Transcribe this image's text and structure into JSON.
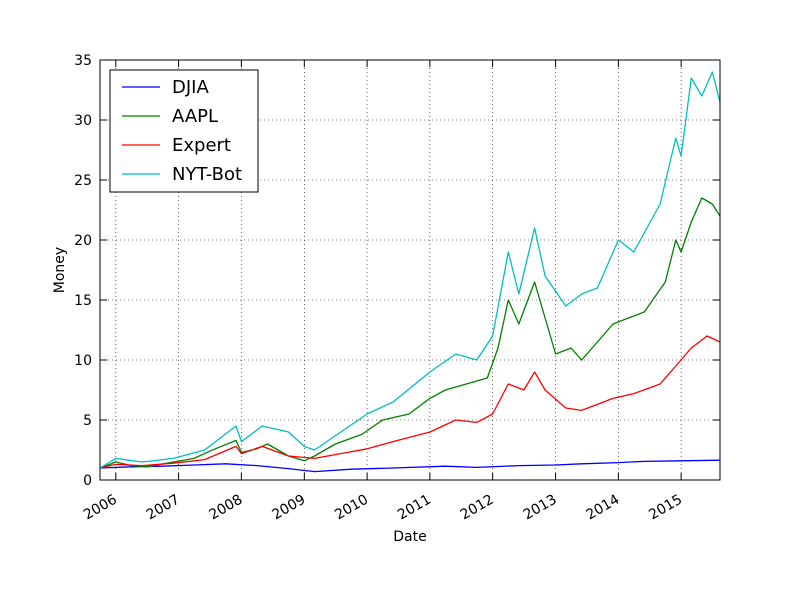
{
  "chart_data": {
    "type": "line",
    "title": "",
    "xlabel": "Date",
    "ylabel": "Money",
    "x_range": [
      "2005-10-01",
      "2015-08-15"
    ],
    "ylim": [
      0,
      35
    ],
    "yticks": [
      0,
      5,
      10,
      15,
      20,
      25,
      30,
      35
    ],
    "xticks": [
      "2006-01-01",
      "2007-01-01",
      "2008-01-01",
      "2009-01-01",
      "2010-01-01",
      "2011-01-01",
      "2012-01-01",
      "2013-01-01",
      "2014-01-01",
      "2015-01-01"
    ],
    "xtick_labels": [
      "2006",
      "2007",
      "2008",
      "2009",
      "2010",
      "2011",
      "2012",
      "2013",
      "2014",
      "2015"
    ],
    "grid": true,
    "legend_position": "top-left",
    "series": [
      {
        "name": "DJIA",
        "color": "#0000ff",
        "points": [
          [
            "2005-10-01",
            1.0
          ],
          [
            "2006-04-01",
            1.1
          ],
          [
            "2006-10-01",
            1.15
          ],
          [
            "2007-04-01",
            1.25
          ],
          [
            "2007-10-01",
            1.35
          ],
          [
            "2008-04-01",
            1.2
          ],
          [
            "2008-10-01",
            0.95
          ],
          [
            "2009-03-01",
            0.7
          ],
          [
            "2009-10-01",
            0.9
          ],
          [
            "2010-06-01",
            1.0
          ],
          [
            "2011-04-01",
            1.15
          ],
          [
            "2011-10-01",
            1.05
          ],
          [
            "2012-06-01",
            1.2
          ],
          [
            "2013-01-01",
            1.25
          ],
          [
            "2013-06-01",
            1.35
          ],
          [
            "2014-01-01",
            1.45
          ],
          [
            "2014-06-01",
            1.55
          ],
          [
            "2015-01-01",
            1.6
          ],
          [
            "2015-08-15",
            1.65
          ]
        ]
      },
      {
        "name": "AAPL",
        "color": "#008000",
        "points": [
          [
            "2005-10-01",
            1.0
          ],
          [
            "2006-01-01",
            1.5
          ],
          [
            "2006-04-01",
            1.2
          ],
          [
            "2006-07-01",
            1.1
          ],
          [
            "2006-12-01",
            1.5
          ],
          [
            "2007-04-01",
            1.8
          ],
          [
            "2007-07-01",
            2.4
          ],
          [
            "2007-12-01",
            3.3
          ],
          [
            "2008-01-01",
            2.3
          ],
          [
            "2008-04-01",
            2.6
          ],
          [
            "2008-06-01",
            3.0
          ],
          [
            "2008-10-01",
            2.0
          ],
          [
            "2009-01-01",
            1.6
          ],
          [
            "2009-03-01",
            2.0
          ],
          [
            "2009-07-01",
            3.0
          ],
          [
            "2009-12-01",
            3.8
          ],
          [
            "2010-04-01",
            5.0
          ],
          [
            "2010-09-01",
            5.5
          ],
          [
            "2011-01-01",
            6.8
          ],
          [
            "2011-04-01",
            7.5
          ],
          [
            "2011-08-01",
            8.0
          ],
          [
            "2011-12-01",
            8.5
          ],
          [
            "2012-02-01",
            11.0
          ],
          [
            "2012-04-01",
            15.0
          ],
          [
            "2012-06-01",
            13.0
          ],
          [
            "2012-09-01",
            16.5
          ],
          [
            "2012-11-01",
            13.5
          ],
          [
            "2013-01-01",
            10.5
          ],
          [
            "2013-04-01",
            11.0
          ],
          [
            "2013-06-01",
            10.0
          ],
          [
            "2013-09-01",
            11.5
          ],
          [
            "2013-12-01",
            13.0
          ],
          [
            "2014-03-01",
            13.5
          ],
          [
            "2014-06-01",
            14.0
          ],
          [
            "2014-10-01",
            16.5
          ],
          [
            "2014-12-01",
            20.0
          ],
          [
            "2015-01-01",
            19.0
          ],
          [
            "2015-03-01",
            21.5
          ],
          [
            "2015-05-01",
            23.5
          ],
          [
            "2015-07-01",
            23.0
          ],
          [
            "2015-08-15",
            22.0
          ]
        ]
      },
      {
        "name": "Expert",
        "color": "#ff0000",
        "points": [
          [
            "2005-10-01",
            1.0
          ],
          [
            "2006-01-01",
            1.3
          ],
          [
            "2006-06-01",
            1.2
          ],
          [
            "2006-12-01",
            1.4
          ],
          [
            "2007-06-01",
            1.7
          ],
          [
            "2007-12-01",
            2.8
          ],
          [
            "2008-01-01",
            2.2
          ],
          [
            "2008-05-01",
            2.8
          ],
          [
            "2008-10-01",
            2.0
          ],
          [
            "2009-03-01",
            1.8
          ],
          [
            "2009-08-01",
            2.2
          ],
          [
            "2010-01-01",
            2.6
          ],
          [
            "2010-06-01",
            3.2
          ],
          [
            "2011-01-01",
            4.0
          ],
          [
            "2011-06-01",
            5.0
          ],
          [
            "2011-10-01",
            4.8
          ],
          [
            "2012-01-01",
            5.5
          ],
          [
            "2012-04-01",
            8.0
          ],
          [
            "2012-07-01",
            7.5
          ],
          [
            "2012-09-01",
            9.0
          ],
          [
            "2012-11-01",
            7.5
          ],
          [
            "2013-03-01",
            6.0
          ],
          [
            "2013-06-01",
            5.8
          ],
          [
            "2013-12-01",
            6.8
          ],
          [
            "2014-04-01",
            7.2
          ],
          [
            "2014-09-01",
            8.0
          ],
          [
            "2014-12-01",
            9.5
          ],
          [
            "2015-03-01",
            11.0
          ],
          [
            "2015-06-01",
            12.0
          ],
          [
            "2015-08-15",
            11.5
          ]
        ]
      },
      {
        "name": "NYT-Bot",
        "color": "#00bfbf",
        "points": [
          [
            "2005-10-01",
            1.0
          ],
          [
            "2006-01-01",
            1.8
          ],
          [
            "2006-06-01",
            1.5
          ],
          [
            "2006-12-01",
            1.8
          ],
          [
            "2007-06-01",
            2.5
          ],
          [
            "2007-12-01",
            4.5
          ],
          [
            "2008-01-01",
            3.2
          ],
          [
            "2008-05-01",
            4.5
          ],
          [
            "2008-10-01",
            4.0
          ],
          [
            "2009-01-01",
            2.8
          ],
          [
            "2009-03-01",
            2.5
          ],
          [
            "2009-08-01",
            4.0
          ],
          [
            "2010-01-01",
            5.5
          ],
          [
            "2010-06-01",
            6.5
          ],
          [
            "2011-01-01",
            9.0
          ],
          [
            "2011-06-01",
            10.5
          ],
          [
            "2011-10-01",
            10.0
          ],
          [
            "2012-01-01",
            12.0
          ],
          [
            "2012-04-01",
            19.0
          ],
          [
            "2012-06-01",
            15.5
          ],
          [
            "2012-09-01",
            21.0
          ],
          [
            "2012-11-01",
            17.0
          ],
          [
            "2013-03-01",
            14.5
          ],
          [
            "2013-06-01",
            15.5
          ],
          [
            "2013-09-01",
            16.0
          ],
          [
            "2014-01-01",
            20.0
          ],
          [
            "2014-04-01",
            19.0
          ],
          [
            "2014-09-01",
            23.0
          ],
          [
            "2014-12-01",
            28.5
          ],
          [
            "2015-01-01",
            27.0
          ],
          [
            "2015-03-01",
            33.5
          ],
          [
            "2015-05-01",
            32.0
          ],
          [
            "2015-07-01",
            34.0
          ],
          [
            "2015-08-15",
            31.5
          ]
        ]
      }
    ]
  }
}
